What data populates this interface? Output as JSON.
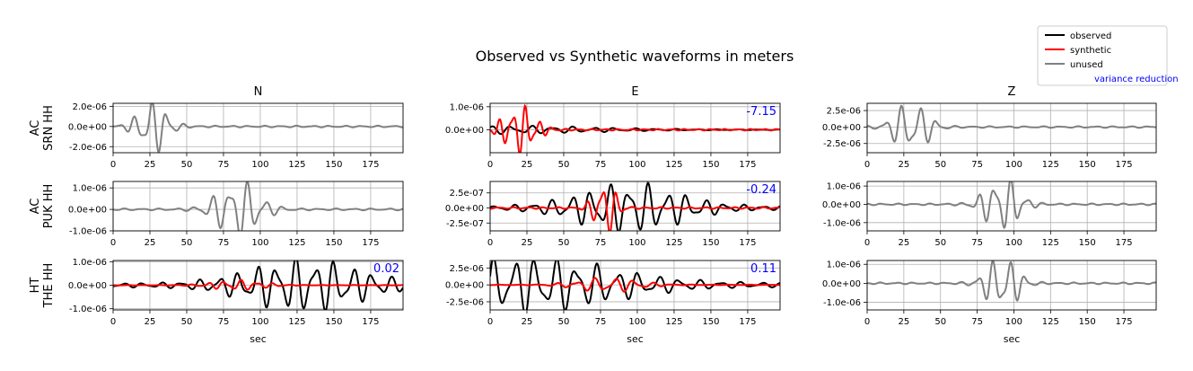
{
  "title": "Observed vs Synthetic waveforms in meters",
  "legend": {
    "placement": "top-right",
    "items": [
      {
        "label": "observed",
        "color": "#000000"
      },
      {
        "label": "synthetic",
        "color": "#ff0000"
      },
      {
        "label": "unused",
        "color": "#808080"
      },
      {
        "label": "variance reduction",
        "color": "#0000ff",
        "text_only": true
      }
    ]
  },
  "components": [
    "N",
    "E",
    "Z"
  ],
  "stations": [
    {
      "network": "AC",
      "name": "SRN HH"
    },
    {
      "network": "AC",
      "name": "PUK HH"
    },
    {
      "network": "HT",
      "name": "THE HH"
    }
  ],
  "xlabel": "sec",
  "chart_data": {
    "type": "line",
    "grid": true,
    "xlim": [
      0,
      197
    ],
    "xticks": [
      0,
      25,
      50,
      75,
      100,
      125,
      150,
      175
    ],
    "panels": [
      {
        "station": 0,
        "component": "N",
        "ylim": [
          -2.6e-06,
          2.3e-06
        ],
        "yticks": [
          -2e-06,
          0,
          2e-06
        ],
        "ytick_labels": [
          "-2.0e-06",
          "0.0e+00",
          "2.0e-06"
        ],
        "series": [
          {
            "kind": "unused",
            "amp": 2.4e-06,
            "t0": 27,
            "dur": 28,
            "period": 11,
            "seed": 11
          }
        ]
      },
      {
        "station": 0,
        "component": "E",
        "ylim": [
          -1e-06,
          1.15e-06
        ],
        "yticks": [
          0,
          1e-06
        ],
        "ytick_labels": [
          "0.0e+00",
          "1.0e-06"
        ],
        "variance_reduction": "-7.15",
        "series": [
          {
            "kind": "observed",
            "amp": 1.5e-07,
            "t0": 10,
            "dur": 180,
            "period": 14,
            "seed": 3
          },
          {
            "kind": "synthetic",
            "amp": 1e-06,
            "t0": 20,
            "dur": 30,
            "period": 9,
            "seed": 7
          }
        ]
      },
      {
        "station": 0,
        "component": "Z",
        "ylim": [
          -3.9e-06,
          3.6e-06
        ],
        "yticks": [
          -2.5e-06,
          0,
          2.5e-06
        ],
        "ytick_labels": [
          "-2.5e-06",
          "0.0e+00",
          "2.5e-06"
        ],
        "series": [
          {
            "kind": "unused",
            "amp": 3.6e-06,
            "t0": 30,
            "dur": 32,
            "period": 12,
            "seed": 21
          }
        ]
      },
      {
        "station": 1,
        "component": "N",
        "ylim": [
          -1e-06,
          1.3e-06
        ],
        "yticks": [
          -1e-06,
          0,
          1e-06
        ],
        "ytick_labels": [
          "-1.0e-06",
          "0.0e+00",
          "1.0e-06"
        ],
        "series": [
          {
            "kind": "unused",
            "amp": 1.25e-06,
            "t0": 85,
            "dur": 40,
            "period": 12,
            "seed": 31
          }
        ]
      },
      {
        "station": 1,
        "component": "E",
        "ylim": [
          -3.8e-07,
          4.4e-07
        ],
        "yticks": [
          -2.5e-07,
          0,
          2.5e-07
        ],
        "ytick_labels": [
          "-2.5e-07",
          "0.0e+00",
          "2.5e-07"
        ],
        "variance_reduction": "-0.24",
        "series": [
          {
            "kind": "observed",
            "amp": 3.6e-07,
            "t0": 95,
            "dur": 100,
            "period": 13,
            "seed": 41
          },
          {
            "kind": "synthetic",
            "amp": 4.3e-07,
            "t0": 78,
            "dur": 20,
            "period": 10,
            "seed": 43
          }
        ]
      },
      {
        "station": 1,
        "component": "Z",
        "ylim": [
          -1.45e-06,
          1.25e-06
        ],
        "yticks": [
          -1e-06,
          0,
          1e-06
        ],
        "ytick_labels": [
          "-1.0e-06",
          "0.0e+00",
          "1.0e-06"
        ],
        "series": [
          {
            "kind": "unused",
            "amp": 1.4e-06,
            "t0": 92,
            "dur": 32,
            "period": 11,
            "seed": 51
          }
        ]
      },
      {
        "station": 2,
        "component": "N",
        "ylim": [
          -1.05e-06,
          1.05e-06
        ],
        "yticks": [
          -1e-06,
          0,
          1e-06
        ],
        "ytick_labels": [
          "-1.0e-06",
          "0.0e+00",
          "1.0e-06"
        ],
        "variance_reduction": "0.02",
        "series": [
          {
            "kind": "observed",
            "amp": 1e-06,
            "t0": 130,
            "dur": 110,
            "period": 13,
            "seed": 61
          },
          {
            "kind": "synthetic",
            "amp": 2e-07,
            "t0": 85,
            "dur": 50,
            "period": 11,
            "seed": 63
          }
        ]
      },
      {
        "station": 2,
        "component": "E",
        "ylim": [
          -3.7e-06,
          3.6e-06
        ],
        "yticks": [
          -2.5e-06,
          0,
          2.5e-06
        ],
        "ytick_labels": [
          "-2.5e-06",
          "0.0e+00",
          "2.5e-06"
        ],
        "variance_reduction": "0.11",
        "series": [
          {
            "kind": "observed",
            "amp": 3.6e-06,
            "t0": 25,
            "dur": 170,
            "period": 14,
            "seed": 71
          },
          {
            "kind": "synthetic",
            "amp": 1e-06,
            "t0": 80,
            "dur": 60,
            "period": 13,
            "seed": 73
          }
        ]
      },
      {
        "station": 2,
        "component": "Z",
        "ylim": [
          -1.4e-06,
          1.2e-06
        ],
        "yticks": [
          -1e-06,
          0,
          1e-06
        ],
        "ytick_labels": [
          "-1.0e-06",
          "0.0e+00",
          "1.0e-06"
        ],
        "series": [
          {
            "kind": "unused",
            "amp": 1.35e-06,
            "t0": 92,
            "dur": 30,
            "period": 11,
            "seed": 81
          }
        ]
      }
    ]
  }
}
